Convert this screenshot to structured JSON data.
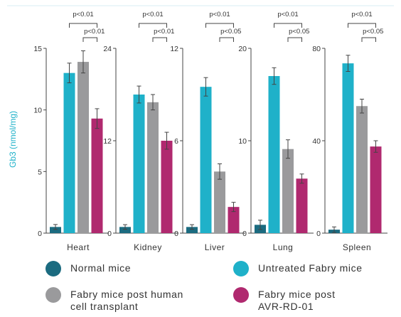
{
  "colors": {
    "normal": "#1b6b80",
    "untreated": "#1fb1c9",
    "human_transplant": "#9a9a9c",
    "avr": "#b0296f",
    "axis": "#444444",
    "text": "#333333",
    "top_rule": "#d7eef3"
  },
  "legend": [
    {
      "key": "normal",
      "label": "Normal mice"
    },
    {
      "key": "untreated",
      "label": "Untreated Fabry mice"
    },
    {
      "key": "human_transplant",
      "label": "Fabry mice post human\ncell transplant"
    },
    {
      "key": "avr",
      "label": "Fabry mice post\nAVR-RD-01"
    }
  ],
  "chart_data": {
    "type": "bar",
    "ylabel": "Gb3 (nmol/mg)",
    "series_names": [
      "Normal mice",
      "Untreated Fabry mice",
      "Fabry mice post human cell transplant",
      "Fabry mice post AVR-RD-01"
    ],
    "panels": [
      {
        "category": "Heart",
        "ylim": [
          0,
          15
        ],
        "yticks": [
          "0",
          "5",
          "10",
          "15"
        ],
        "tick_values": [
          0,
          5,
          10,
          15
        ],
        "values": [
          0.5,
          13.0,
          13.9,
          9.3
        ],
        "errors": [
          0.2,
          0.8,
          0.9,
          0.8
        ],
        "annotations": [
          {
            "from": 1,
            "to": 3,
            "label": "p<0.01"
          },
          {
            "from": 2,
            "to": 3,
            "label": "p<0.01"
          }
        ]
      },
      {
        "category": "Kidney",
        "ylim": [
          0,
          24
        ],
        "yticks": [
          "0",
          "12",
          "24"
        ],
        "tick_values": [
          0,
          12,
          24
        ],
        "values": [
          0.8,
          18.0,
          17.0,
          12.0
        ],
        "errors": [
          0.3,
          1.1,
          1.0,
          1.1
        ],
        "annotations": [
          {
            "from": 1,
            "to": 3,
            "label": "p<0.01"
          },
          {
            "from": 2,
            "to": 3,
            "label": "p<0.01"
          }
        ]
      },
      {
        "category": "Liver",
        "ylim": [
          0,
          12
        ],
        "yticks": [
          "0",
          "6",
          "12"
        ],
        "tick_values": [
          0,
          6,
          12
        ],
        "values": [
          0.4,
          9.5,
          4.0,
          1.7
        ],
        "errors": [
          0.15,
          0.6,
          0.5,
          0.3
        ],
        "annotations": [
          {
            "from": 1,
            "to": 3,
            "label": "p<0.01"
          },
          {
            "from": 2,
            "to": 3,
            "label": "p<0.05"
          }
        ]
      },
      {
        "category": "Lung",
        "ylim": [
          0,
          20
        ],
        "yticks": [
          "0",
          "10",
          "20"
        ],
        "tick_values": [
          0,
          10,
          20
        ],
        "values": [
          0.9,
          17.0,
          9.1,
          5.9
        ],
        "errors": [
          0.5,
          0.9,
          1.0,
          0.5
        ],
        "annotations": [
          {
            "from": 1,
            "to": 3,
            "label": "p<0.01"
          },
          {
            "from": 2,
            "to": 3,
            "label": "p<0.05"
          }
        ]
      },
      {
        "category": "Spleen",
        "ylim": [
          0,
          80
        ],
        "yticks": [
          "0",
          "40",
          "80"
        ],
        "tick_values": [
          0,
          40,
          80
        ],
        "values": [
          1.5,
          73.5,
          55.0,
          37.5
        ],
        "errors": [
          1.2,
          3.5,
          3.0,
          2.5
        ],
        "annotations": [
          {
            "from": 1,
            "to": 3,
            "label": "p<0.01"
          },
          {
            "from": 2,
            "to": 3,
            "label": "p<0.05"
          }
        ]
      }
    ]
  }
}
